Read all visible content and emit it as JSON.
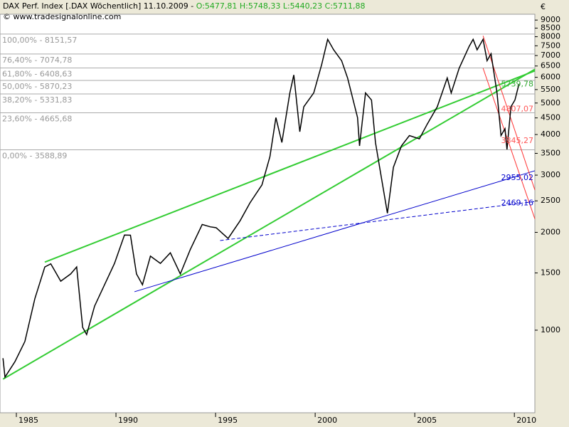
{
  "chart_data": {
    "type": "line",
    "title": "DAX Perf. Index [.DAX  Wöchentlich] 11.10.2009 -",
    "quote": "O:5477,81 H:5748,33 L:5440,23 C:5711,88",
    "subtitle": "© www.tradesignalonline.com",
    "unit": "€",
    "log_scale": true,
    "color": "#000000",
    "xlim": [
      1983.75,
      2010.6
    ],
    "xticks": [
      1985,
      1990,
      1995,
      2000,
      2005,
      2010
    ],
    "ylim": [
      557,
      9380
    ],
    "yticks": [
      1000,
      1500,
      2000,
      2500,
      3000,
      3500,
      4000,
      4500,
      5000,
      5500,
      6000,
      6500,
      7000,
      7500,
      8000,
      8500,
      9000
    ],
    "x": [
      1983.9,
      1984.0,
      1984.5,
      1985.0,
      1985.5,
      1986.0,
      1986.3,
      1986.8,
      1987.3,
      1987.6,
      1987.9,
      1988.1,
      1988.5,
      1989.0,
      1989.5,
      1990.0,
      1990.3,
      1990.6,
      1990.9,
      1991.3,
      1991.8,
      1992.3,
      1992.8,
      1993.3,
      1993.9,
      1994.3,
      1994.6,
      1995.2,
      1995.8,
      1996.3,
      1996.9,
      1997.3,
      1997.6,
      1997.9,
      1998.3,
      1998.5,
      1998.8,
      1999.0,
      1999.5,
      1999.9,
      2000.2,
      2000.5,
      2000.9,
      2001.2,
      2001.7,
      2001.8,
      2002.1,
      2002.4,
      2002.6,
      2002.9,
      2003.2,
      2003.5,
      2003.9,
      2004.3,
      2004.8,
      2005.2,
      2005.7,
      2006.2,
      2006.4,
      2006.8,
      2007.3,
      2007.5,
      2007.7,
      2008.0,
      2008.2,
      2008.4,
      2008.7,
      2008.9,
      2009.1,
      2009.2,
      2009.4,
      2009.6,
      2009.8
    ],
    "values": [
      820,
      717,
      800,
      923,
      1250,
      1565,
      1600,
      1415,
      1490,
      1565,
      1020,
      970,
      1186,
      1380,
      1605,
      1962,
      1960,
      1490,
      1380,
      1690,
      1605,
      1730,
      1490,
      1770,
      2115,
      2080,
      2066,
      1915,
      2170,
      2465,
      2800,
      3420,
      4510,
      3780,
      5370,
      6100,
      4080,
      4870,
      5370,
      6570,
      7850,
      7290,
      6750,
      5970,
      4510,
      3690,
      5370,
      5110,
      3780,
      2940,
      2290,
      3170,
      3690,
      3970,
      3880,
      4310,
      4870,
      5970,
      5370,
      6400,
      7470,
      7850,
      7290,
      7850,
      6750,
      7090,
      5370,
      3970,
      4170,
      3600,
      4870,
      5110,
      5711.88
    ],
    "levels": [
      {
        "value": 8151.57,
        "label": "100,00% - 8151,57"
      },
      {
        "value": 7074.78,
        "label": "76,40% - 7074,78"
      },
      {
        "value": 6408.63,
        "label": "61,80% - 6408,63"
      },
      {
        "value": 5870.23,
        "label": "50,00% - 5870,23"
      },
      {
        "value": 5331.83,
        "label": "38,20% - 5331,83"
      },
      {
        "value": 4665.68,
        "label": "23,60% - 4665,68"
      },
      {
        "value": 3588.89,
        "label": "0,00% - 3588,89"
      }
    ],
    "trendlines": [
      {
        "color": "#33cc33",
        "x": [
          1986.0,
          2010.6
        ],
        "y": [
          1620,
          6280
        ]
      },
      {
        "color": "#33cc33",
        "x": [
          1983.9,
          2010.6
        ],
        "y": [
          707,
          6350
        ]
      },
      {
        "color": "#0000cc",
        "x": [
          1990.5,
          2010.6
        ],
        "y": [
          1313,
          3094
        ]
      },
      {
        "color": "#0000cc",
        "x": [
          1994.8,
          2010.6
        ],
        "y": [
          1887,
          2488
        ],
        "dash": true
      },
      {
        "color": "#ff3333",
        "x": [
          2008.0,
          2010.6
        ],
        "y": [
          8050,
          2700
        ]
      },
      {
        "color": "#ff3333",
        "x": [
          2008.0,
          2010.6
        ],
        "y": [
          6400,
          2200
        ]
      }
    ],
    "annotations": [
      {
        "value": 5739.78,
        "label": "5739,78",
        "color": "#33aa33"
      },
      {
        "value": 4807.07,
        "label": "4807,07",
        "color": "#ff5555"
      },
      {
        "value": 3845.27,
        "label": "3845,27",
        "color": "#ff5555"
      },
      {
        "value": 2955.02,
        "label": "2955,02",
        "color": "#0000cc"
      },
      {
        "value": 2469.16,
        "label": "2469,16",
        "color": "#0000cc"
      }
    ]
  }
}
